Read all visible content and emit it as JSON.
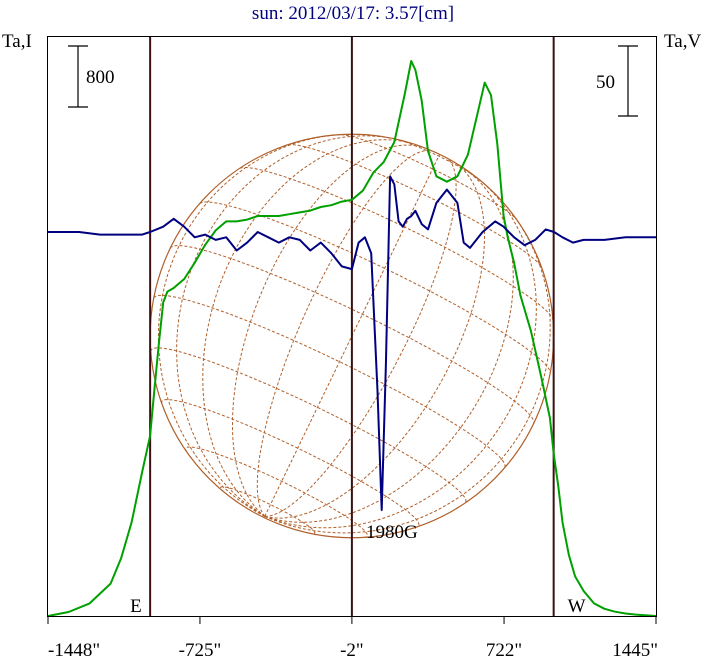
{
  "chart_data": {
    "type": "line",
    "title": "sun: 2012/03/17: 3.57[cm]",
    "left_axis_label": "Ta,I",
    "right_axis_label": "Ta,V",
    "x_ticks": [
      {
        "value": -1448,
        "label": "-1448\""
      },
      {
        "value": -725,
        "label": "-725\""
      },
      {
        "value": -2,
        "label": "-2\""
      },
      {
        "value": 722,
        "label": "722\""
      },
      {
        "value": 1445,
        "label": "1445\""
      }
    ],
    "xlim": [
      -1448,
      1445
    ],
    "vertical_markers": [
      {
        "x": -962,
        "label": "E"
      },
      {
        "x": -2,
        "label": ""
      },
      {
        "x": 958,
        "label": "W"
      }
    ],
    "disk": {
      "center_x": -2,
      "radius_arcsec": 960,
      "label": "1980G"
    },
    "scale_bars": {
      "I": {
        "value": 800,
        "label": "800"
      },
      "V": {
        "value": 50,
        "label": "50"
      }
    },
    "colors": {
      "stokes_I": "#00a000",
      "stokes_V": "#000080",
      "disk": "#b0602a",
      "markers": "#3a1010",
      "title": "#000080"
    },
    "series": [
      {
        "key": "I",
        "x": [
          -1448,
          -1350,
          -1250,
          -1150,
          -1100,
          -1050,
          -1000,
          -962,
          -940,
          -920,
          -900,
          -880,
          -850,
          -800,
          -750,
          -700,
          -650,
          -600,
          -550,
          -500,
          -450,
          -400,
          -350,
          -300,
          -250,
          -200,
          -150,
          -100,
          -50,
          -2,
          50,
          100,
          150,
          200,
          250,
          280,
          300,
          330,
          360,
          400,
          450,
          500,
          550,
          600,
          630,
          660,
          690,
          720,
          740,
          770,
          800,
          850,
          900,
          940,
          958,
          980,
          1000,
          1030,
          1060,
          1100,
          1150,
          1200,
          1250,
          1300,
          1350,
          1445
        ],
        "y": [
          0,
          22,
          70,
          180,
          320,
          520,
          800,
          1000,
          1280,
          1520,
          1740,
          1800,
          1820,
          1870,
          1960,
          2060,
          2140,
          2190,
          2190,
          2200,
          2220,
          2220,
          2220,
          2230,
          2240,
          2250,
          2270,
          2280,
          2300,
          2310,
          2360,
          2460,
          2520,
          2630,
          2900,
          3080,
          3030,
          2860,
          2580,
          2440,
          2410,
          2440,
          2560,
          2810,
          2960,
          2890,
          2620,
          2220,
          2100,
          1960,
          1780,
          1580,
          1320,
          1100,
          900,
          720,
          520,
          340,
          220,
          140,
          70,
          40,
          24,
          14,
          8,
          0
        ]
      },
      {
        "key": "V",
        "x": [
          -1448,
          -1300,
          -1200,
          -1100,
          -1000,
          -962,
          -900,
          -850,
          -800,
          -750,
          -700,
          -650,
          -600,
          -550,
          -500,
          -450,
          -400,
          -350,
          -300,
          -250,
          -200,
          -150,
          -100,
          -50,
          -2,
          30,
          60,
          90,
          120,
          140,
          160,
          180,
          200,
          220,
          240,
          260,
          280,
          300,
          330,
          360,
          400,
          450,
          500,
          530,
          560,
          590,
          620,
          650,
          680,
          720,
          770,
          820,
          870,
          920,
          960,
          1000,
          1050,
          1100,
          1200,
          1300,
          1445
        ],
        "y": [
          0,
          0,
          -1,
          -1,
          -1,
          0,
          2,
          5,
          2,
          -2,
          -1,
          -3,
          -2,
          -7,
          -4,
          0,
          -2,
          -4,
          -2,
          -3,
          -7,
          -4,
          -8,
          -13,
          -14,
          -4,
          -2,
          -8,
          -60,
          -105,
          -50,
          21,
          18,
          4,
          2,
          5,
          6,
          8,
          3,
          1,
          11,
          16,
          11,
          -4,
          -6,
          -3,
          0,
          2,
          4,
          2,
          -2,
          -5,
          -3,
          1,
          0,
          -2,
          -4,
          -3,
          -3,
          -2,
          -2
        ]
      }
    ]
  }
}
